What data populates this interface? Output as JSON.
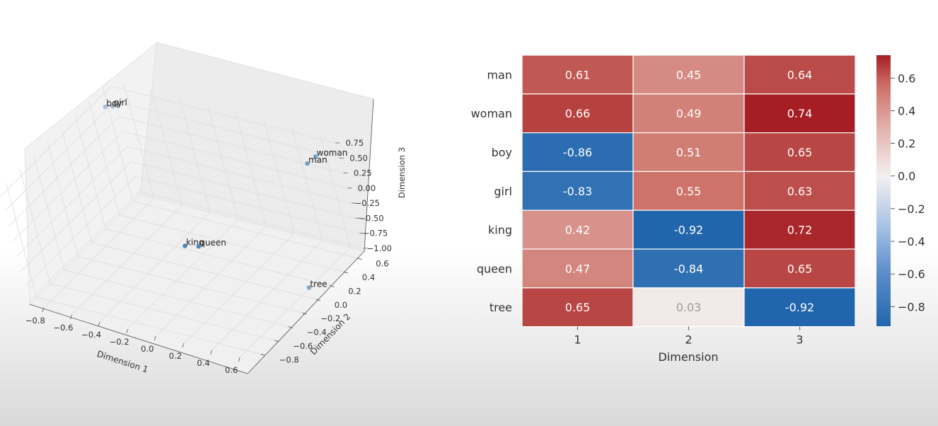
{
  "chart_data": [
    {
      "type": "scatter",
      "projection": "3d",
      "xlabel": "Dimension 1",
      "ylabel": "Dimension 2",
      "zlabel": "Dimension 3",
      "xticks": [
        "−0.8",
        "−0.6",
        "−0.4",
        "−0.2",
        "0.0",
        "0.2",
        "0.4",
        "0.6"
      ],
      "yticks": [
        "−0.8",
        "−0.6",
        "−0.4",
        "−0.2",
        "0.0",
        "0.2",
        "0.4",
        "0.6"
      ],
      "zticks": [
        "−1.00",
        "−0.75",
        "−0.50",
        "−0.25",
        "0.00",
        "0.25",
        "0.50",
        "0.75"
      ],
      "point_color": "#4a86b8",
      "points": [
        {
          "label": "girl",
          "x": -0.83,
          "y": 0.55,
          "z": 0.63
        },
        {
          "label": "boy",
          "x": -0.86,
          "y": 0.51,
          "z": 0.65
        },
        {
          "label": "woman",
          "x": 0.66,
          "y": 0.49,
          "z": 0.74
        },
        {
          "label": "man",
          "x": 0.61,
          "y": 0.45,
          "z": 0.64
        },
        {
          "label": "king",
          "x": 0.42,
          "y": -0.92,
          "z": 0.72
        },
        {
          "label": "queen",
          "x": 0.47,
          "y": -0.84,
          "z": 0.65
        },
        {
          "label": "tree",
          "x": 0.65,
          "y": 0.03,
          "z": -0.92
        }
      ]
    },
    {
      "type": "heatmap",
      "rows": [
        "man",
        "woman",
        "boy",
        "girl",
        "king",
        "queen",
        "tree"
      ],
      "columns": [
        "1",
        "2",
        "3"
      ],
      "values": [
        [
          0.61,
          0.45,
          0.64
        ],
        [
          0.66,
          0.49,
          0.74
        ],
        [
          -0.86,
          0.51,
          0.65
        ],
        [
          -0.83,
          0.55,
          0.63
        ],
        [
          0.42,
          -0.92,
          0.72
        ],
        [
          0.47,
          -0.84,
          0.65
        ],
        [
          0.65,
          0.03,
          -0.92
        ]
      ],
      "cell_labels": [
        [
          "0.61",
          "0.45",
          "0.64"
        ],
        [
          "0.66",
          "0.49",
          "0.74"
        ],
        [
          "-0.86",
          "0.51",
          "0.65"
        ],
        [
          "-0.83",
          "0.55",
          "0.63"
        ],
        [
          "0.42",
          "-0.92",
          "0.72"
        ],
        [
          "0.47",
          "-0.84",
          "0.65"
        ],
        [
          "0.65",
          "0.03",
          "-0.92"
        ]
      ],
      "xlabel": "Dimension",
      "colormap": "vlag (blue-white-red)",
      "vmin": -0.92,
      "vmax": 0.74,
      "colorbar_ticks": [
        0.6,
        0.4,
        0.2,
        0.0,
        -0.2,
        -0.4,
        -0.6,
        -0.8
      ],
      "colorbar_tick_labels": [
        "0.6",
        "0.4",
        "0.2",
        "0.0",
        "−0.2",
        "−0.4",
        "−0.6",
        "−0.8"
      ]
    }
  ]
}
